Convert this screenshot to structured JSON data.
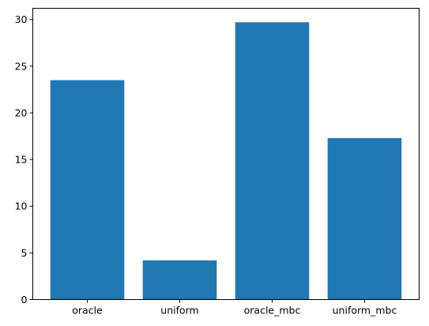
{
  "chart_data": {
    "type": "bar",
    "title": "",
    "xlabel": "",
    "ylabel": "",
    "categories": [
      "oracle",
      "uniform",
      "oracle_mbc",
      "uniform_mbc"
    ],
    "values": [
      23.5,
      4.2,
      29.7,
      17.3
    ],
    "ylim": [
      0,
      31.2
    ],
    "yticks": [
      0,
      5,
      10,
      15,
      20,
      25,
      30
    ],
    "grid": false,
    "legend": "none",
    "bar_color": "#1f77b4"
  }
}
